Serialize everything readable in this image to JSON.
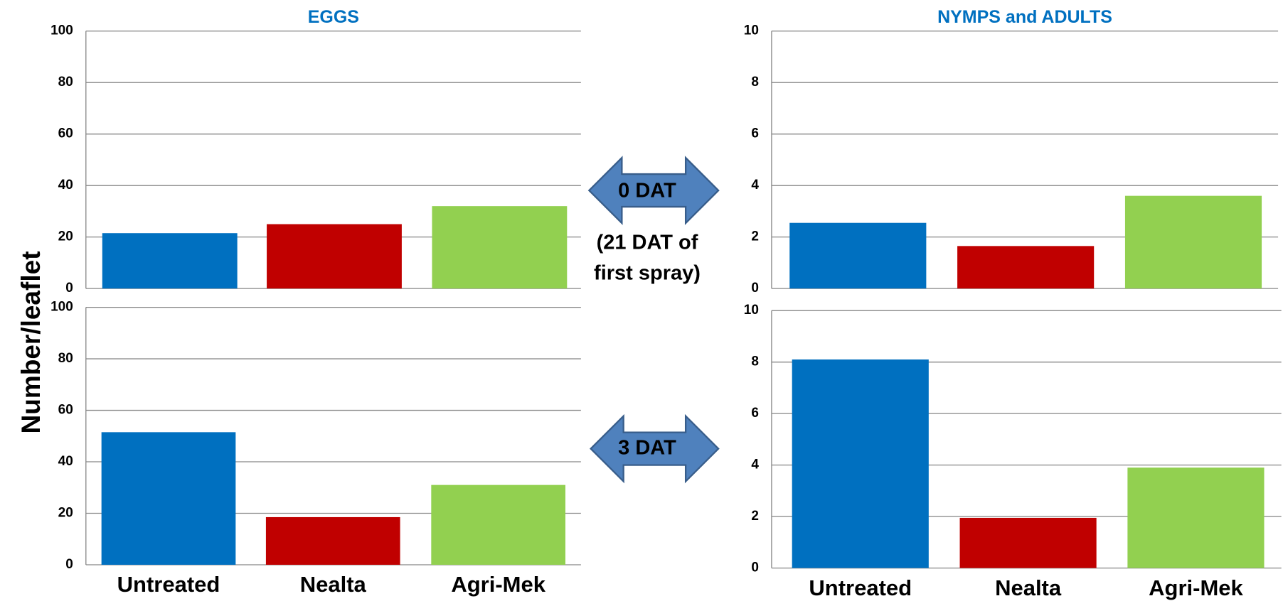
{
  "y_label": "Number/leaflet",
  "annotations": [
    "0 DAT",
    "(21 DAT of",
    "first spray)",
    "3 DAT"
  ],
  "chart_data": [
    {
      "type": "bar",
      "title": "EGGS",
      "categories": [
        null,
        null,
        null
      ],
      "values": [
        21.5,
        25,
        32
      ],
      "colors": [
        "#0070c0",
        "#c00000",
        "#92d050"
      ],
      "ylim": [
        0,
        100
      ],
      "yticks": [
        0,
        20,
        40,
        60,
        80,
        100
      ],
      "grid": true
    },
    {
      "type": "bar",
      "title": "NYMPS and ADULTS",
      "categories": [
        null,
        null,
        null
      ],
      "values": [
        2.55,
        1.65,
        3.6
      ],
      "colors": [
        "#0070c0",
        "#c00000",
        "#92d050"
      ],
      "ylim": [
        0,
        10
      ],
      "yticks": [
        0,
        2,
        4,
        6,
        8,
        10
      ],
      "grid": true
    },
    {
      "type": "bar",
      "categories": [
        "Untreated",
        "Nealta",
        "Agri-Mek"
      ],
      "values": [
        51.5,
        18.5,
        31
      ],
      "colors": [
        "#0070c0",
        "#c00000",
        "#92d050"
      ],
      "ylim": [
        0,
        100
      ],
      "yticks": [
        0,
        20,
        40,
        60,
        80,
        100
      ],
      "grid": true
    },
    {
      "type": "bar",
      "categories": [
        "Untreated",
        "Nealta",
        "Agri-Mek"
      ],
      "values": [
        8.1,
        1.95,
        3.9
      ],
      "colors": [
        "#0070c0",
        "#c00000",
        "#92d050"
      ],
      "ylim": [
        0,
        10
      ],
      "yticks": [
        0,
        2,
        4,
        6,
        8,
        10
      ],
      "grid": true
    }
  ]
}
